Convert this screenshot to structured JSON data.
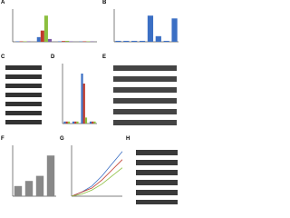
{
  "panels": [
    {
      "label": "A",
      "chart": {
        "type": "bar",
        "categories": [
          null,
          null,
          null,
          null
        ],
        "ylim": [
          0,
          35
        ],
        "series": [
          {
            "color": "#3b6fc4",
            "values": [
              0.5,
              5,
              0.5,
              0.3
            ]
          },
          {
            "color": "#c0392b",
            "values": [
              0.5,
              12,
              0.8,
              0.5
            ]
          },
          {
            "color": "#8cbf3f",
            "values": [
              0.5,
              28,
              1,
              0.5
            ]
          },
          {
            "color": "#7d5ba6",
            "values": [
              0.5,
              3,
              0.5,
              0.4
            ]
          }
        ]
      }
    },
    {
      "label": "B",
      "chart": {
        "type": "bar",
        "categories": [
          null,
          null,
          null,
          null,
          null,
          null,
          null,
          null
        ],
        "ylim": [
          0,
          35
        ],
        "series": [
          {
            "color": "#3b6fc4",
            "values": [
              1,
              1,
              1,
              1,
              28,
              6,
              1,
              25
            ]
          }
        ]
      }
    },
    {
      "label": "C"
    },
    {
      "label": "D",
      "chart": {
        "type": "bar",
        "categories": [
          null,
          null,
          null,
          null
        ],
        "ylim": [
          0,
          30
        ],
        "series": [
          {
            "color": "#3b6fc4",
            "values": [
              1,
              1,
              25,
              1
            ]
          },
          {
            "color": "#c0392b",
            "values": [
              1,
              1,
              20,
              1
            ]
          },
          {
            "color": "#8cbf3f",
            "values": [
              1,
              1,
              3,
              1
            ]
          }
        ]
      }
    },
    {
      "label": "E"
    },
    {
      "label": "F",
      "chart": {
        "type": "bar",
        "categories": [
          null,
          null,
          null,
          null
        ],
        "ylim": [
          0,
          5
        ],
        "series": [
          {
            "color": "#888888",
            "values": [
              1,
              1.5,
              2,
              4
            ]
          }
        ]
      }
    },
    {
      "label": "G",
      "chart": {
        "type": "line",
        "x": [
          0,
          1,
          2,
          3,
          4,
          5
        ],
        "xlim": [
          0,
          5
        ],
        "ylim": [
          0,
          25
        ],
        "series": [
          {
            "color": "#3b6fc4",
            "values": [
              0,
              2,
              5,
              10,
              16,
              22
            ]
          },
          {
            "color": "#c0392b",
            "values": [
              0,
              2,
              4,
              8,
              13,
              18
            ]
          },
          {
            "color": "#8cbf3f",
            "values": [
              0,
              1,
              3,
              6,
              10,
              14
            ]
          }
        ]
      }
    },
    {
      "label": "H"
    }
  ]
}
